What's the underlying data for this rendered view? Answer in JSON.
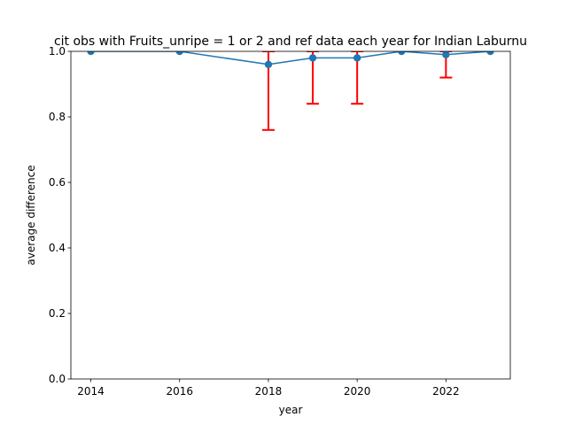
{
  "chart_data": {
    "type": "line",
    "title": "cit obs with Fruits_unripe = 1 or 2 and ref data each year for Indian Laburnu",
    "xlabel": "year",
    "ylabel": "average difference",
    "xlim": [
      2013.55,
      2023.45
    ],
    "ylim": [
      0,
      1
    ],
    "x_ticks": [
      2014,
      2016,
      2018,
      2020,
      2022
    ],
    "y_ticks": [
      0.0,
      0.2,
      0.4,
      0.6,
      0.8,
      1.0
    ],
    "x_tick_labels": [
      "2014",
      "2016",
      "2018",
      "2020",
      "2022"
    ],
    "y_tick_labels": [
      "0.0",
      "0.2",
      "0.4",
      "0.6",
      "0.8",
      "1.0"
    ],
    "grid": false,
    "legend": "none",
    "series": [
      {
        "x": [
          2014,
          2016,
          2018,
          2019,
          2020,
          2021,
          2022,
          2023
        ],
        "values": [
          1.0,
          1.0,
          0.96,
          0.98,
          0.98,
          1.0,
          0.99,
          1.0
        ],
        "error_lower": [
          1.0,
          1.0,
          0.76,
          0.84,
          0.84,
          1.0,
          0.92,
          1.0
        ],
        "error_upper": [
          1.0,
          1.0,
          1.0,
          1.0,
          1.0,
          1.0,
          1.0,
          1.0
        ],
        "color": "#1f77b4",
        "error_color": "#ff0000"
      }
    ]
  }
}
